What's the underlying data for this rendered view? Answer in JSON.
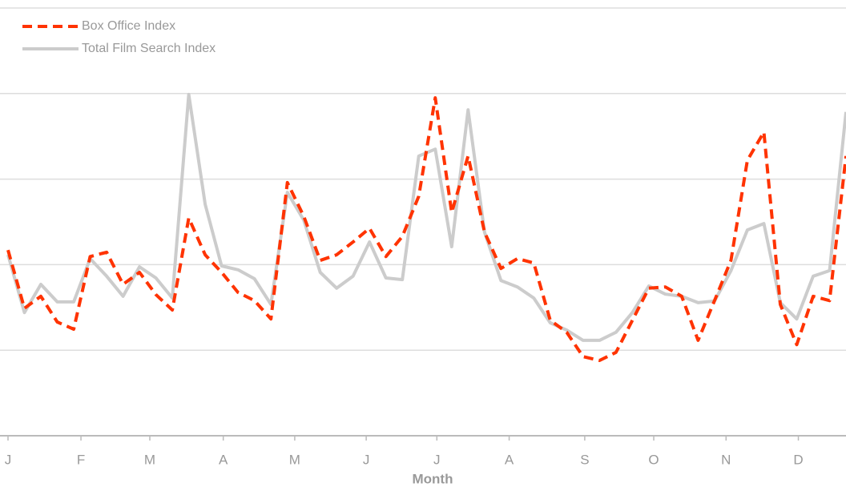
{
  "chart_data": {
    "type": "line",
    "x_label": "Month",
    "x": [
      0,
      1,
      2,
      3,
      4,
      5,
      6,
      7,
      8,
      9,
      10,
      11,
      12,
      13,
      14,
      15,
      16,
      17,
      18,
      19,
      20,
      21,
      22,
      23,
      24,
      25,
      26,
      27,
      28,
      29,
      30,
      31,
      32,
      33,
      34,
      35,
      36,
      37,
      38,
      39,
      40,
      41,
      42,
      43,
      44,
      45,
      46,
      47,
      48,
      49,
      50,
      51
    ],
    "xlim": [
      0,
      51
    ],
    "xticks": [
      {
        "value": 0,
        "label": "J"
      },
      {
        "value": 4.44,
        "label": "F"
      },
      {
        "value": 8.63,
        "label": "M"
      },
      {
        "value": 13.1,
        "label": "A"
      },
      {
        "value": 17.45,
        "label": "M"
      },
      {
        "value": 21.8,
        "label": "J"
      },
      {
        "value": 26.1,
        "label": "J"
      },
      {
        "value": 30.5,
        "label": "A"
      },
      {
        "value": 35.1,
        "label": "S"
      },
      {
        "value": 39.3,
        "label": "O"
      },
      {
        "value": 43.7,
        "label": "N"
      },
      {
        "value": 48.1,
        "label": "D"
      }
    ],
    "ylim": [
      0,
      100
    ],
    "yticks": [
      0,
      20,
      40,
      60,
      80,
      100
    ],
    "grid": true,
    "legend": "top-left",
    "series": [
      {
        "name": "Box Office Index",
        "color": "#ff3300",
        "dashed": true,
        "values": [
          43.4,
          29.8,
          32.6,
          26.6,
          24.9,
          41.9,
          42.9,
          35.4,
          38.2,
          33.0,
          29.4,
          50.9,
          42.3,
          38.2,
          33.5,
          31.6,
          27.3,
          59.2,
          51.3,
          41.0,
          42.3,
          45.3,
          48.5,
          41.9,
          46.6,
          56.0,
          79.0,
          52.2,
          65.4,
          47.6,
          39.1,
          41.4,
          40.4,
          27.0,
          24.2,
          18.5,
          17.6,
          19.5,
          27.0,
          34.5,
          34.8,
          32.6,
          22.3,
          31.6,
          41.0,
          64.4,
          71.0,
          30.7,
          21.3,
          32.6,
          31.6,
          65.4
        ]
      },
      {
        "name": "Total Film Search Index",
        "color": "#cccccc",
        "dashed": false,
        "values": [
          42.3,
          28.8,
          35.4,
          31.3,
          31.3,
          41.4,
          37.3,
          32.6,
          39.5,
          36.9,
          32.2,
          79.8,
          54.1,
          39.7,
          38.8,
          36.7,
          30.7,
          56.9,
          50.4,
          38.2,
          34.5,
          37.3,
          45.3,
          36.9,
          36.5,
          65.4,
          67.0,
          44.2,
          76.2,
          47.6,
          36.3,
          34.8,
          32.2,
          26.4,
          24.7,
          22.3,
          22.3,
          24.2,
          28.8,
          35.0,
          33.1,
          32.6,
          31.1,
          31.5,
          38.6,
          48.1,
          49.6,
          31.1,
          27.3,
          37.3,
          38.6,
          75.7
        ]
      }
    ]
  }
}
